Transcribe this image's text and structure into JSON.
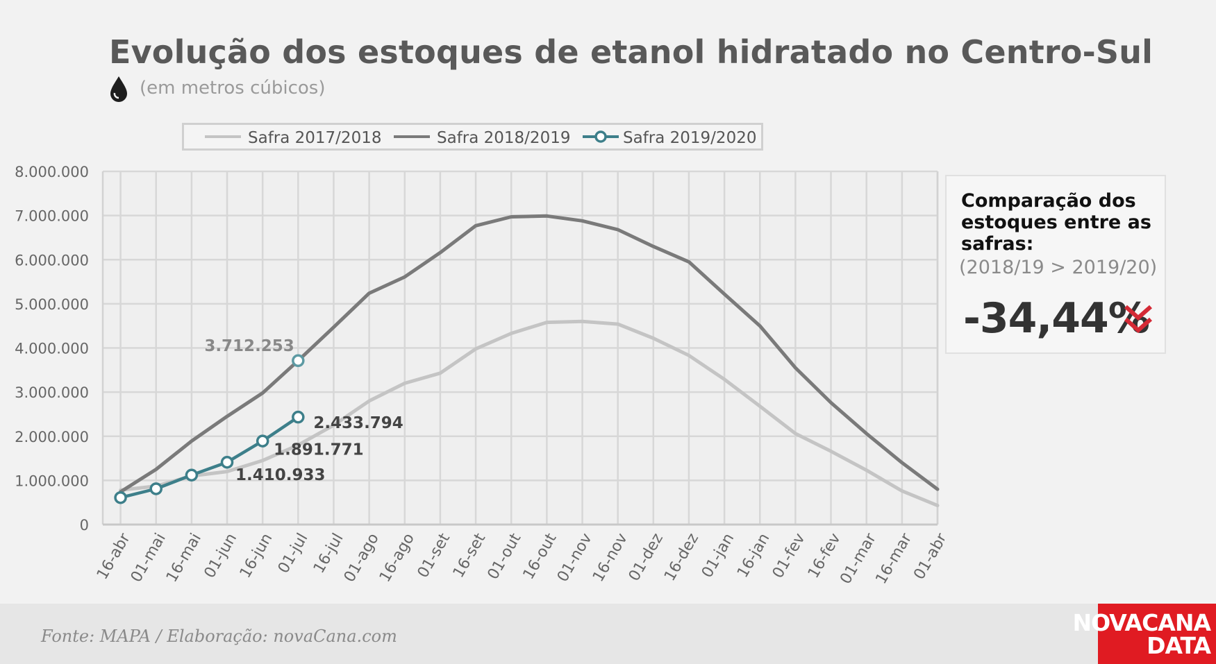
{
  "title": "Evolução dos estoques de etanol hidratado no Centro-Sul",
  "subtitle": "(em metros cúbicos)",
  "icons": {
    "subtitle_icon": "drop-icon",
    "panel_icon": "double-chevron-down-icon"
  },
  "colors": {
    "safra_2017": "#c4c4c4",
    "safra_2018": "#7a7a7a",
    "safra_2019": "#3d7f8a",
    "accent_red": "#d42a36",
    "logo_bg": "#e01b22"
  },
  "panel": {
    "heading": "Comparação dos estoques entre as safras:",
    "sub": "(2018/19 > 2019/20)",
    "value": "-34,44%"
  },
  "footer": {
    "source": "Fonte: MAPA  / Elaboração: novaCana.com"
  },
  "logo": {
    "line1": "NOVACANA",
    "line2": "DATA"
  },
  "chart_data": {
    "type": "line",
    "title": "Evolução dos estoques de etanol hidratado no Centro-Sul",
    "subtitle": "(em metros cúbicos)",
    "xlabel": "",
    "ylabel": "",
    "ylim": [
      0,
      8000000
    ],
    "yticks": [
      0,
      1000000,
      2000000,
      3000000,
      4000000,
      5000000,
      6000000,
      7000000,
      8000000
    ],
    "ytick_labels": [
      "0",
      "1.000.000",
      "2.000.000",
      "3.000.000",
      "4.000.000",
      "5.000.000",
      "6.000.000",
      "7.000.000",
      "8.000.000"
    ],
    "grid": true,
    "legend_position": "top",
    "categories": [
      "16-abr",
      "01-mai",
      "16-mai",
      "01-jun",
      "16-jun",
      "01-jul",
      "16-jul",
      "01-ago",
      "16-ago",
      "01-set",
      "16-set",
      "01-out",
      "16-out",
      "01-nov",
      "16-nov",
      "01-dez",
      "16-dez",
      "01-jan",
      "16-jan",
      "01-fev",
      "16-fev",
      "01-mar",
      "16-mar",
      "01-abr"
    ],
    "series": [
      {
        "name": "Safra 2017/2018",
        "values": [
          780000,
          870000,
          1100000,
          1200000,
          1450000,
          1800000,
          2250000,
          2800000,
          3200000,
          3430000,
          3980000,
          4330000,
          4580000,
          4600000,
          4540000,
          4220000,
          3830000,
          3290000,
          2680000,
          2060000,
          1660000,
          1230000,
          760000,
          430000
        ]
      },
      {
        "name": "Safra 2018/2019",
        "values": [
          740000,
          1250000,
          1890000,
          2450000,
          2980000,
          3712253,
          4470000,
          5240000,
          5610000,
          6160000,
          6770000,
          6970000,
          6990000,
          6880000,
          6680000,
          6300000,
          5950000,
          5220000,
          4500000,
          3550000,
          2760000,
          2060000,
          1400000,
          800000
        ]
      },
      {
        "name": "Safra 2019/2020",
        "values": [
          610000,
          810000,
          1120000,
          1410933,
          1891771,
          2433794,
          null,
          null,
          null,
          null,
          null,
          null,
          null,
          null,
          null,
          null,
          null,
          null,
          null,
          null,
          null,
          null,
          null,
          null
        ]
      }
    ],
    "annotations": [
      {
        "text": "3.712.253",
        "category": "01-jul",
        "value": 3712253,
        "series": "Safra 2018/2019"
      },
      {
        "text": "2.433.794",
        "category": "01-jul",
        "value": 2433794,
        "series": "Safra 2019/2020"
      },
      {
        "text": "1.891.771",
        "category": "16-jun",
        "value": 1891771,
        "series": "Safra 2019/2020"
      },
      {
        "text": "1.410.933",
        "category": "01-jun",
        "value": 1410933,
        "series": "Safra 2019/2020"
      }
    ]
  }
}
